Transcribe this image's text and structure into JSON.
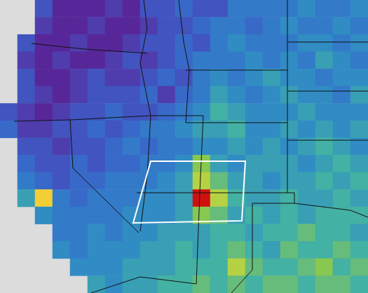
{
  "chart_data": {
    "type": "heatmap",
    "tick_labels": false,
    "colorbar": {
      "range": [
        0,
        10
      ]
    },
    "cells": [
      [
        null,
        null,
        2,
        1,
        1,
        1,
        1.5,
        1,
        2,
        2,
        2.5,
        2,
        2,
        3,
        3,
        3,
        3,
        3.5,
        3,
        3,
        3.5
      ],
      [
        null,
        null,
        1.5,
        1,
        1,
        1.5,
        1,
        1,
        1.5,
        2,
        2,
        2.5,
        3,
        3,
        2.5,
        3,
        3.5,
        3,
        3,
        3.5,
        3
      ],
      [
        null,
        2,
        1,
        1,
        1.5,
        1,
        1,
        1.5,
        2,
        2,
        2.5,
        2,
        3,
        3.5,
        3,
        3,
        3,
        3.5,
        3.5,
        3,
        3.5
      ],
      [
        null,
        1.5,
        1,
        1.5,
        1,
        1,
        1.5,
        2,
        1.5,
        2,
        2.5,
        3,
        3,
        3,
        3.5,
        3,
        3.5,
        3,
        4,
        3.5,
        3
      ],
      [
        null,
        2,
        1,
        1,
        1.5,
        2,
        1.5,
        1.5,
        2,
        2.5,
        2,
        3,
        3.5,
        3,
        3.5,
        4,
        3.5,
        3.5,
        3,
        3.5,
        3.5
      ],
      [
        null,
        2,
        1.5,
        1,
        1.5,
        2,
        2,
        2,
        2.5,
        1.5,
        2.5,
        3,
        4,
        3.5,
        3,
        3.5,
        4,
        3.5,
        3.5,
        3,
        4
      ],
      [
        2,
        1.5,
        1,
        1.5,
        2,
        2,
        2.5,
        2,
        2,
        2.5,
        3,
        3.5,
        4.5,
        4,
        3.5,
        3.5,
        3.5,
        4,
        3.5,
        3.5,
        3.5
      ],
      [
        2.5,
        1.5,
        1.5,
        2,
        2,
        2.5,
        2,
        2.5,
        3,
        3,
        3.5,
        4,
        4,
        4.5,
        3.5,
        3.5,
        4,
        3.5,
        4,
        3.5,
        4
      ],
      [
        null,
        2,
        2,
        1.5,
        2,
        2,
        2.5,
        3,
        2.5,
        3,
        3,
        3.5,
        3.5,
        4,
        3.5,
        4,
        3.5,
        4,
        4.5,
        4,
        3.5
      ],
      [
        null,
        2.5,
        2,
        2,
        2.5,
        2,
        2.5,
        2.5,
        3,
        3,
        3.5,
        5.5,
        4,
        3.5,
        4,
        4,
        4,
        3.5,
        4,
        4.5,
        4
      ],
      [
        null,
        3,
        2.5,
        2,
        2.5,
        2.5,
        3,
        3,
        3,
        3.5,
        4,
        6,
        5,
        4,
        4,
        3.5,
        4,
        4,
        4.5,
        4,
        4.5
      ],
      [
        null,
        4,
        7,
        3,
        2.5,
        3,
        3,
        3,
        3.5,
        3.5,
        4,
        10,
        6,
        4.5,
        4,
        4,
        4.5,
        4,
        4,
        4.5,
        4
      ],
      [
        null,
        null,
        3.5,
        3,
        3,
        3,
        3,
        3.5,
        3.5,
        3.5,
        4,
        5.5,
        5,
        4,
        4.5,
        4,
        4.5,
        4,
        4.5,
        4.5,
        4.5
      ],
      [
        null,
        null,
        null,
        3,
        3,
        3.5,
        3,
        3.5,
        3.5,
        4,
        4,
        4,
        4.5,
        4.5,
        4,
        4.5,
        4.5,
        5,
        4.5,
        4.5,
        4
      ],
      [
        null,
        null,
        null,
        3.5,
        3,
        3.5,
        3.5,
        3.5,
        4,
        4,
        4.5,
        4,
        4.5,
        5,
        4.5,
        4,
        5,
        4.5,
        4.5,
        5,
        4.5
      ],
      [
        null,
        null,
        null,
        null,
        3.5,
        3.5,
        3.5,
        4,
        4,
        4,
        4.5,
        4.5,
        4.5,
        6,
        5,
        4.5,
        4.5,
        5,
        5.5,
        4.5,
        5
      ],
      [
        null,
        null,
        null,
        null,
        null,
        4,
        3.5,
        4,
        4,
        4.5,
        4.5,
        5,
        4.5,
        5,
        4.5,
        5,
        5,
        4.5,
        5,
        5,
        4.5
      ]
    ]
  }
}
